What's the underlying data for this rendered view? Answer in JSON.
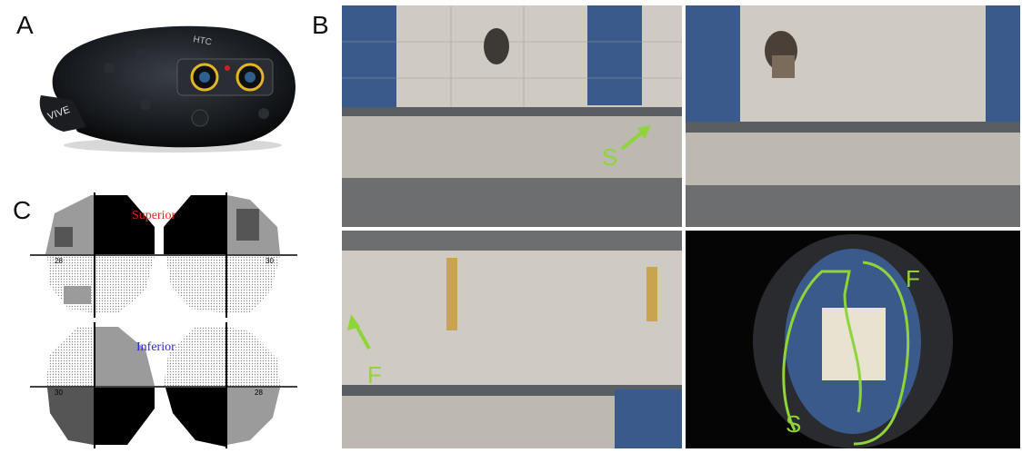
{
  "panels": {
    "a": {
      "letter": "A",
      "headset_brand": "HTC",
      "strap_text": "VIVE"
    },
    "b": {
      "letter": "B",
      "markers": {
        "s_top": "S",
        "f_bottom_left": "F",
        "f_overview": "F",
        "s_overview": "S"
      }
    },
    "c": {
      "letter": "C",
      "superior_label": "Superior",
      "inferior_label": "Inferior",
      "field_values": [
        "28",
        "30",
        "30",
        "28"
      ]
    }
  },
  "colors": {
    "marker_green": "#8fd43a",
    "superior_red": "#e0241b",
    "inferior_blue": "#2b2bd0",
    "field_gray": "#9b9b9b",
    "field_black": "#000000"
  }
}
